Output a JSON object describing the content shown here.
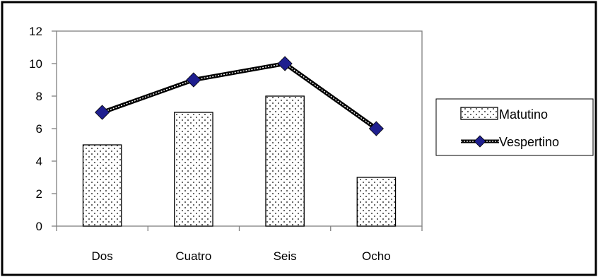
{
  "chart_data": {
    "type": "bar",
    "categories": [
      "Dos",
      "Cuatro",
      "Seis",
      "Ocho"
    ],
    "series": [
      {
        "name": "Matutino",
        "type": "bar",
        "values": [
          5,
          7,
          8,
          3
        ]
      },
      {
        "name": "Vespertino",
        "type": "line",
        "values": [
          7,
          9,
          10,
          6
        ]
      }
    ],
    "ylim": [
      0,
      12
    ],
    "yticks": [
      0,
      2,
      4,
      6,
      8,
      10,
      12
    ],
    "grid": false,
    "legend": "right",
    "colors": {
      "marker": "#1f1f8f",
      "bar_fill": "#ffffff",
      "outline": "#000000"
    }
  }
}
